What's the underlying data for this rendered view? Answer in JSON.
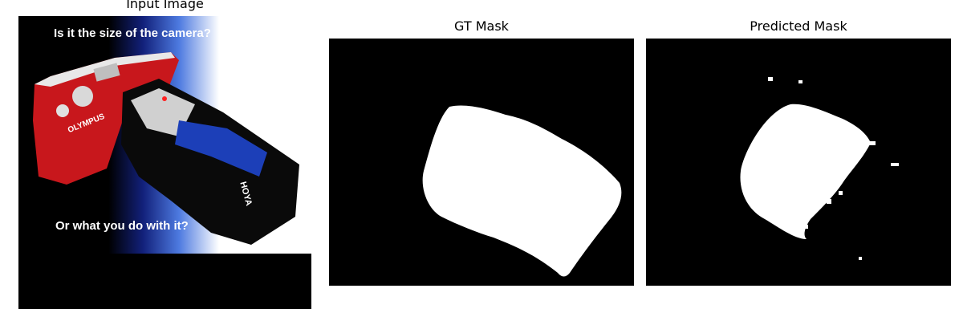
{
  "figure": {
    "panels": [
      {
        "title": "Input Image"
      },
      {
        "title": "GT Mask"
      },
      {
        "title": "Predicted Mask"
      }
    ]
  },
  "input_image": {
    "caption_top": "Is it the size of the camera?",
    "caption_bottom": "Or what you do with it?",
    "brand_text": "OLYMPUS",
    "lens_text": "HOYA"
  },
  "colors": {
    "background": "#000000",
    "mask": "#ffffff",
    "camera_body": "#c8171c",
    "lens_accent": "#1c3fb8"
  }
}
